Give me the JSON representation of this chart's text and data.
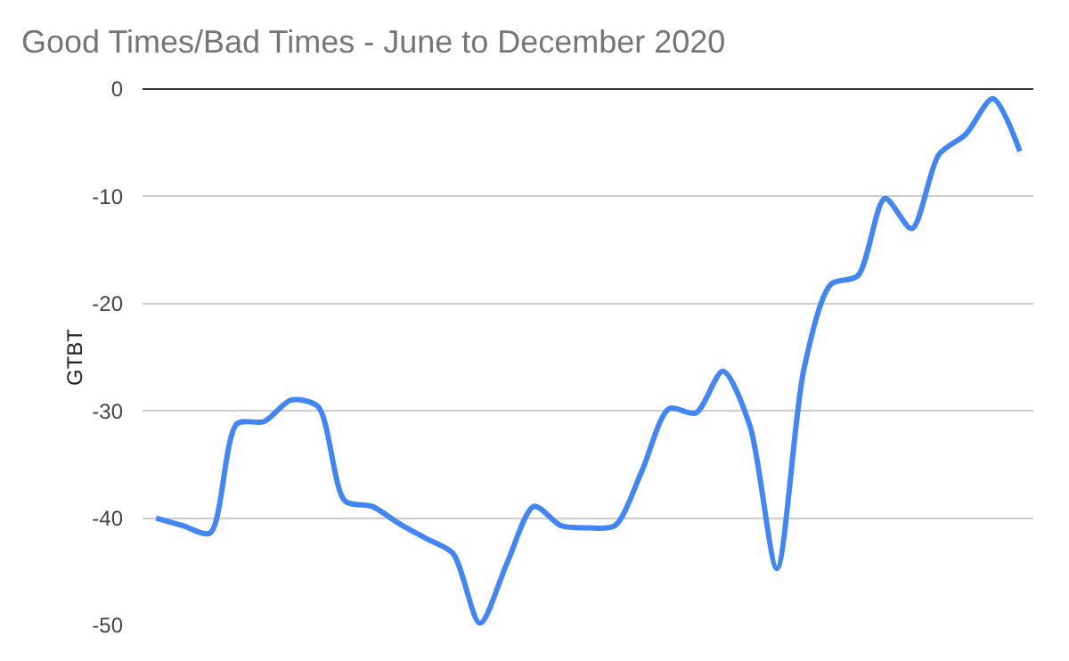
{
  "chart_data": {
    "type": "line",
    "title": "Good Times/Bad Times - June to December 2020",
    "ylabel": "GTBT",
    "categories": [
      null,
      null,
      null,
      null,
      null,
      null,
      null,
      null,
      null,
      null,
      null,
      null,
      null,
      null,
      null,
      null,
      null,
      null,
      null,
      null,
      null,
      null,
      null,
      null,
      null,
      null,
      null,
      null,
      null,
      null,
      null,
      null,
      null
    ],
    "series": [
      {
        "color": "#4285f4",
        "values": [
          -40,
          -40.7,
          -41.4,
          -31.2,
          -31,
          -29,
          -29.6,
          -38.4,
          -38.9,
          -40.5,
          -41.9,
          -43.3,
          -49.8,
          -44.2,
          -38.9,
          -40.7,
          -40.9,
          -40.7,
          -35.6,
          -29.8,
          -30.2,
          -26.3,
          -31.4,
          -44.7,
          -26.1,
          -18.2,
          -17.4,
          -10.2,
          -13,
          -6.1,
          -4.2,
          -0.9,
          -5.8
        ]
      }
    ],
    "ylim": [
      -50,
      0
    ],
    "yticks": [
      -50,
      -40,
      -30,
      -20,
      -10,
      0
    ],
    "grid": "y",
    "marker": "none",
    "line_style": "solid"
  }
}
